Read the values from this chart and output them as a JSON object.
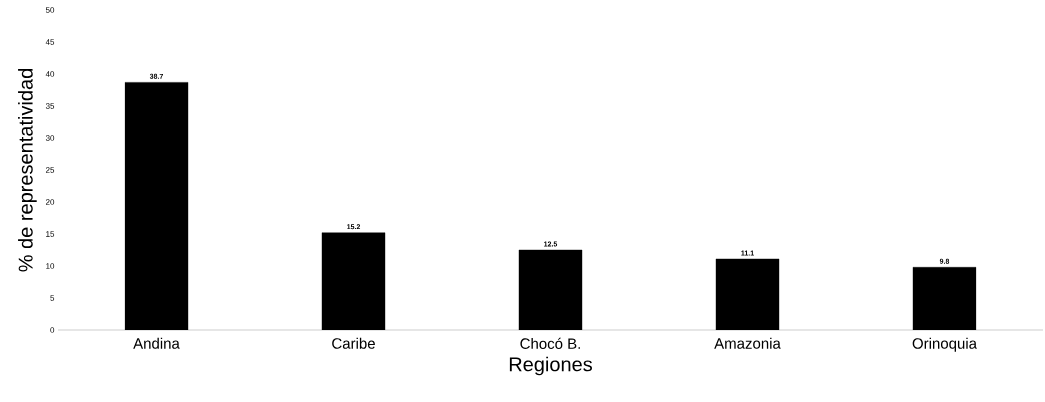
{
  "chart_data": {
    "type": "bar",
    "xlabel": "Regiones",
    "ylabel": "% de representatividad",
    "categories": [
      "Andina",
      "Caribe",
      "Chocó B.",
      "Amazonia",
      "Orinoquia"
    ],
    "values": [
      38.7,
      15.2,
      12.5,
      11.1,
      9.8
    ],
    "color": "#000000",
    "ylim": [
      0,
      50
    ],
    "yticks": [
      0,
      5,
      10,
      15,
      20,
      25,
      30,
      35,
      40,
      45,
      50
    ],
    "data_labels": true,
    "grid": false
  }
}
